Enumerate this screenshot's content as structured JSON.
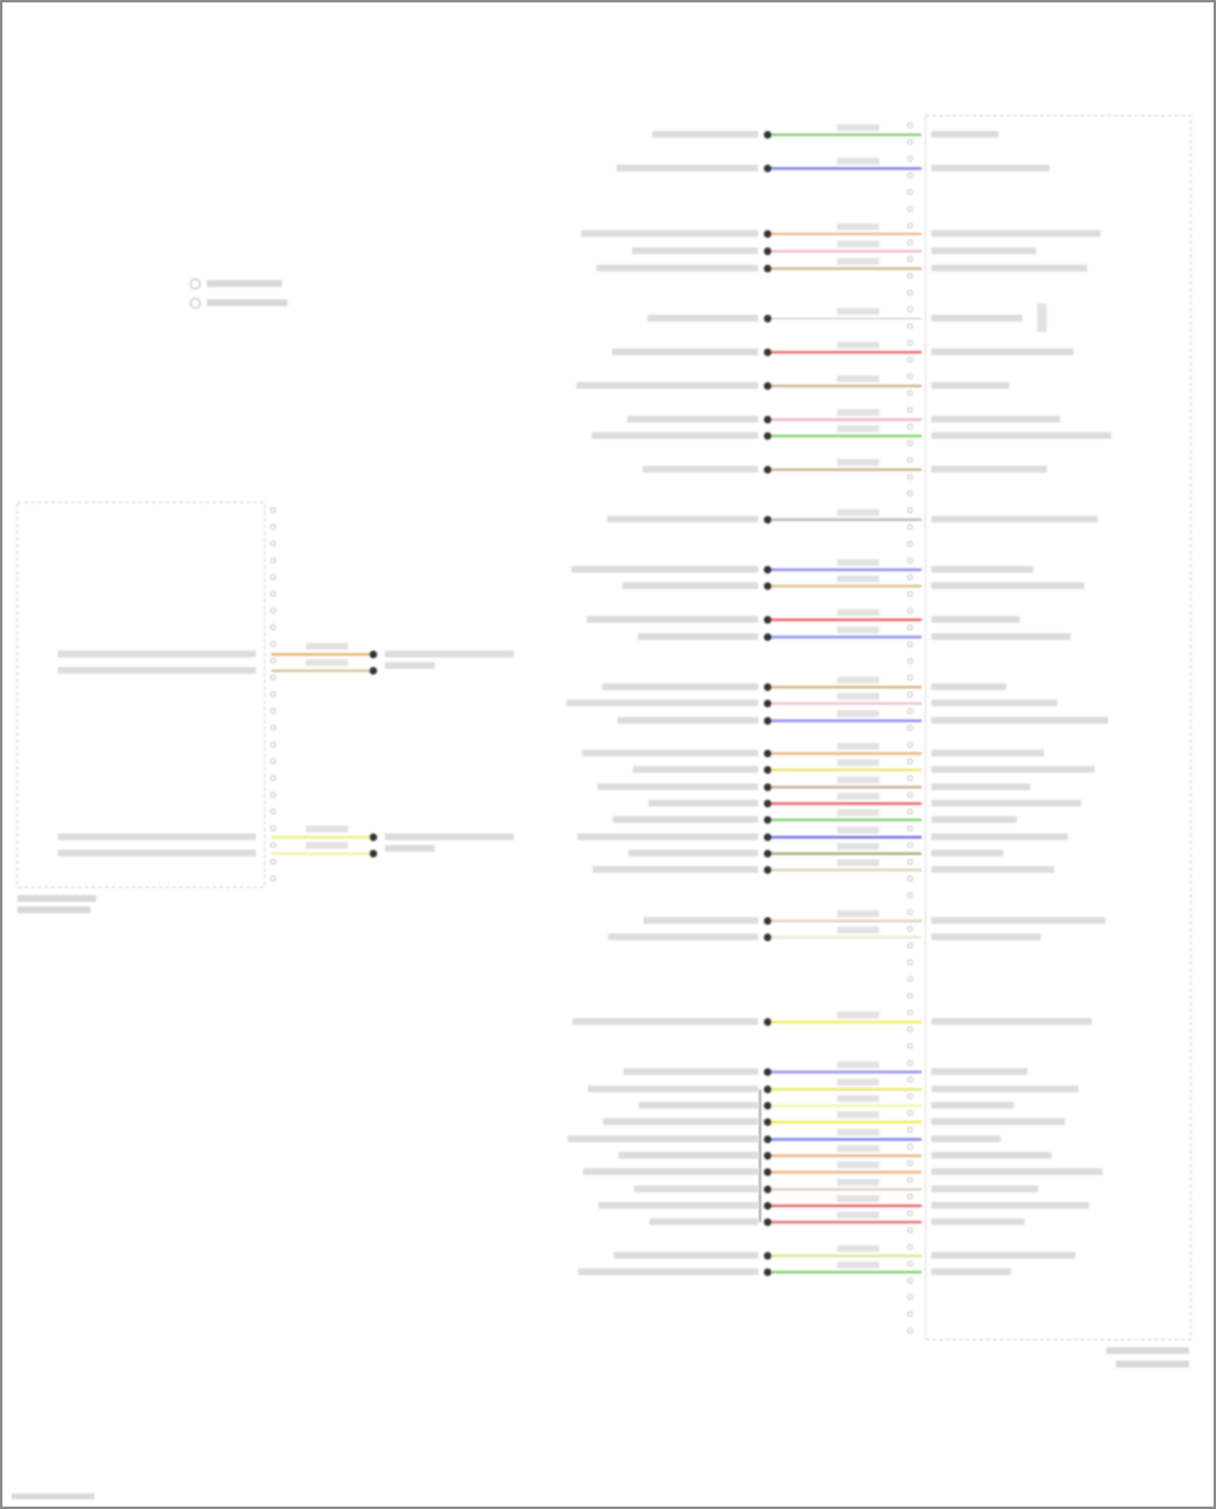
{
  "diagram": {
    "right_connector": {
      "wire_colors": [
        "#7fcf6a",
        "#7a7ae8",
        "#e8b98a",
        "#efb8c4",
        "#c8b98a",
        "#b0b0b0",
        "#e86a6a",
        "#c8b08a",
        "#efb0c0",
        "#7fd26a",
        "#c8b08a",
        "#b8b8b8",
        "#8a8ae8",
        "#d8c08a",
        "#ee5a5a",
        "#8a8aee",
        "#d8b07a",
        "#f2c0cc",
        "#8a8aee",
        "#e8b080",
        "#f0e070",
        "#c8b08a",
        "#ee6060",
        "#80d070",
        "#7070e8",
        "#a8a870",
        "#e0d0b0",
        "#e0d0b0",
        "#e8e8d0",
        "#eeee60",
        "#8a8aee",
        "#e8e870",
        "#f4f4b0",
        "#eeee50",
        "#7a7aee",
        "#e8b080",
        "#f0b080",
        "#e0d0c0",
        "#e86060",
        "#e86a6a",
        "#d8e890",
        "#80d070"
      ]
    },
    "left_connector": {
      "wire_colors": [
        "#e8b070",
        "#d8c090",
        "#eeee70",
        "#f2f0a0"
      ]
    },
    "colors": {
      "border": "#8a8a8a",
      "box_dash": "#c8c8c8",
      "pin": "#bbbbbb",
      "splice": "#333333"
    }
  }
}
